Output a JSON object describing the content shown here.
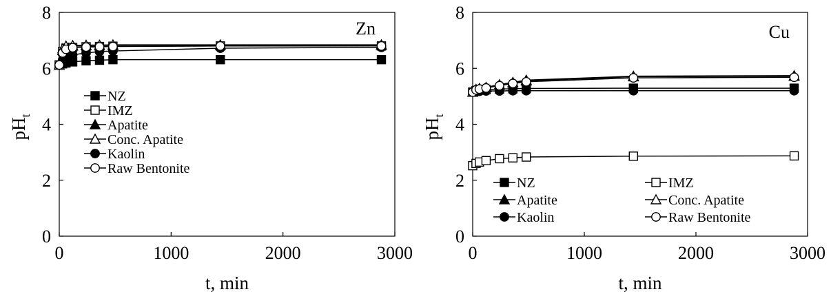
{
  "chart_data": [
    {
      "type": "line",
      "title": "Zn",
      "xlabel": "t, min",
      "ylabel_main": "pH",
      "ylabel_sub": "t",
      "xlim": [
        0,
        3000
      ],
      "ylim": [
        0,
        8
      ],
      "xticks": [
        "0",
        "1000",
        "2000",
        "3000"
      ],
      "yticks": [
        "0",
        "2",
        "4",
        "6",
        "8"
      ],
      "grid": false,
      "legend_position": "lower-left",
      "x": [
        0,
        30,
        60,
        120,
        240,
        360,
        480,
        1440,
        2880
      ],
      "series": [
        {
          "name": "NZ",
          "marker": "square-filled",
          "values": [
            6.12,
            6.16,
            6.19,
            6.23,
            6.27,
            6.29,
            6.31,
            6.31,
            6.31
          ]
        },
        {
          "name": "IMZ",
          "marker": "square-open",
          "values": [
            6.12,
            6.6,
            6.72,
            6.75,
            6.77,
            6.78,
            6.79,
            6.8,
            6.8
          ]
        },
        {
          "name": "Apatite",
          "marker": "triangle-filled",
          "values": [
            6.12,
            6.64,
            6.76,
            6.8,
            6.81,
            6.82,
            6.83,
            6.83,
            6.83
          ]
        },
        {
          "name": "Conc. Apatite",
          "marker": "triangle-open",
          "values": [
            6.12,
            6.7,
            6.8,
            6.82,
            6.83,
            6.83,
            6.84,
            6.84,
            6.84
          ]
        },
        {
          "name": "Kaolin",
          "marker": "circle-filled",
          "values": [
            6.12,
            6.3,
            6.4,
            6.48,
            6.55,
            6.6,
            6.62,
            6.72,
            6.75
          ]
        },
        {
          "name": "Raw Bentonite",
          "marker": "circle-open",
          "values": [
            6.12,
            6.55,
            6.68,
            6.74,
            6.76,
            6.77,
            6.78,
            6.8,
            6.8
          ]
        }
      ]
    },
    {
      "type": "line",
      "title": "Cu",
      "xlabel": "t, min",
      "ylabel_main": "pH",
      "ylabel_sub": "t",
      "xlim": [
        0,
        3000
      ],
      "ylim": [
        0,
        8
      ],
      "xticks": [
        "0",
        "1000",
        "2000",
        "3000"
      ],
      "yticks": [
        "0",
        "2",
        "4",
        "6",
        "8"
      ],
      "grid": false,
      "legend_position": "bottom, two columns",
      "x": [
        0,
        30,
        60,
        120,
        240,
        360,
        480,
        1440,
        2880
      ],
      "series": [
        {
          "name": "NZ",
          "marker": "square-filled",
          "values": [
            5.15,
            5.2,
            5.22,
            5.24,
            5.26,
            5.27,
            5.28,
            5.29,
            5.29
          ]
        },
        {
          "name": "IMZ",
          "marker": "square-open",
          "values": [
            2.52,
            2.6,
            2.65,
            2.7,
            2.77,
            2.8,
            2.83,
            2.86,
            2.87
          ]
        },
        {
          "name": "Apatite",
          "marker": "triangle-filled",
          "values": [
            5.15,
            5.25,
            5.28,
            5.32,
            5.42,
            5.5,
            5.58,
            5.72,
            5.74
          ]
        },
        {
          "name": "Conc. Apatite",
          "marker": "triangle-open",
          "values": [
            5.15,
            5.24,
            5.27,
            5.31,
            5.4,
            5.48,
            5.55,
            5.7,
            5.72
          ]
        },
        {
          "name": "Kaolin",
          "marker": "circle-filled",
          "values": [
            5.15,
            5.17,
            5.18,
            5.19,
            5.19,
            5.2,
            5.2,
            5.2,
            5.2
          ]
        },
        {
          "name": "Raw Bentonite",
          "marker": "circle-open",
          "values": [
            5.15,
            5.23,
            5.26,
            5.3,
            5.38,
            5.46,
            5.52,
            5.66,
            5.68
          ]
        }
      ]
    }
  ]
}
